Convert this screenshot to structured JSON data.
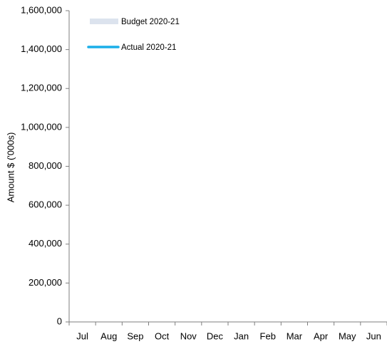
{
  "chart_data": {
    "type": "combo",
    "y_label": "Amount $ ('000s)",
    "categories": [
      "Jul",
      "Aug",
      "Sep",
      "Oct",
      "Nov",
      "Dec",
      "Jan",
      "Feb",
      "Mar",
      "Apr",
      "May",
      "Jun"
    ],
    "series": [
      {
        "name": "Budget 2020-21",
        "type": "area",
        "color": "#dce3ee",
        "values": [
          null,
          null,
          null,
          null,
          null,
          null,
          null,
          null,
          null,
          null,
          null,
          null
        ]
      },
      {
        "name": "Actual 2020-21",
        "type": "line",
        "color": "#1aaee8",
        "values": [
          null,
          null,
          null,
          null,
          null,
          null,
          null,
          null,
          null,
          null,
          null,
          null
        ]
      }
    ],
    "ylim": [
      0,
      1600000
    ],
    "yticks": [
      0,
      {
        "value": 200000,
        "label": "200,000"
      },
      {
        "value": 400000,
        "label": "400,000"
      },
      {
        "value": 600000,
        "label": "600,000"
      },
      {
        "value": 800000,
        "label": "800,000"
      },
      {
        "value": 1000000,
        "label": "1,000,000"
      },
      {
        "value": 1200000,
        "label": "1,200,000"
      },
      {
        "value": 1400000,
        "label": "1,400,000"
      },
      {
        "value": 1600000,
        "label": "1,600,000"
      }
    ],
    "grid": false,
    "legend": "top-left"
  }
}
